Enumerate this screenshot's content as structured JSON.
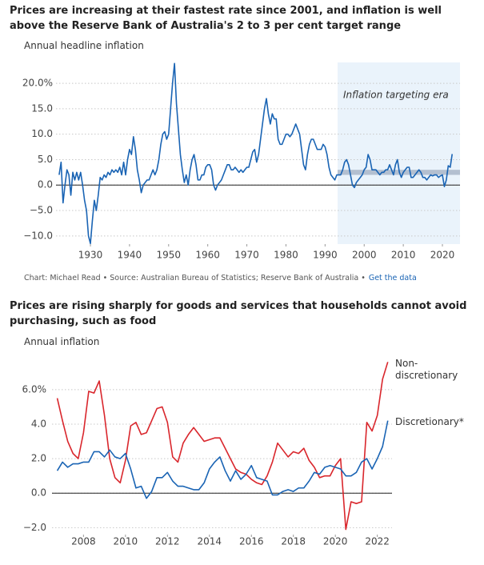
{
  "chart_data": [
    {
      "type": "line",
      "title": "Prices are increasing at their fastest rate since 2001, and inflation is well above the Reserve Bank of Australia's 2 to 3 per cent target range",
      "subtitle": "Annual headline inflation",
      "xlim": [
        1921.2,
        2024.5
      ],
      "xticks": [
        1930,
        1940,
        1950,
        1960,
        1970,
        1980,
        1990,
        2000,
        2010,
        2020
      ],
      "ylim": [
        -11.6,
        24.1
      ],
      "yticks": [
        {
          "value": 20,
          "label": "20.0%"
        },
        {
          "value": 15,
          "label": "15.0"
        },
        {
          "value": 10,
          "label": "10.0"
        },
        {
          "value": 5,
          "label": "5.0"
        },
        {
          "value": 0,
          "label": "0.0"
        },
        {
          "value": -5,
          "label": "−5.0"
        },
        {
          "value": -10,
          "label": "−10.0"
        }
      ],
      "grid": true,
      "shade": {
        "x": [
          1993.2,
          2024.5
        ],
        "color": "#eaf3fb"
      },
      "annotation": "Inflation targeting era",
      "target_band": [
        2,
        3
      ],
      "target_color": "#b3bfd0",
      "color": "#1a64b4",
      "x": [
        1922,
        1922.5,
        1923,
        1923.5,
        1924,
        1924.5,
        1925,
        1925.5,
        1926,
        1926.5,
        1927,
        1927.5,
        1928,
        1928.5,
        1929,
        1929.5,
        1930,
        1930.5,
        1931,
        1931.5,
        1932,
        1932.5,
        1933,
        1933.5,
        1934,
        1934.5,
        1935,
        1935.5,
        1936,
        1936.5,
        1937,
        1937.5,
        1938,
        1938.5,
        1939,
        1939.5,
        1940,
        1940.5,
        1941,
        1941.5,
        1942,
        1942.5,
        1943,
        1943.5,
        1944,
        1944.5,
        1945,
        1945.5,
        1946,
        1946.5,
        1947,
        1947.5,
        1948,
        1948.5,
        1949,
        1949.5,
        1950,
        1950.5,
        1951,
        1951.5,
        1952,
        1952.5,
        1953,
        1953.5,
        1954,
        1954.5,
        1955,
        1955.5,
        1956,
        1956.5,
        1957,
        1957.5,
        1958,
        1958.5,
        1959,
        1959.5,
        1960,
        1960.5,
        1961,
        1961.5,
        1962,
        1962.5,
        1963,
        1963.5,
        1964,
        1964.5,
        1965,
        1965.5,
        1966,
        1966.5,
        1967,
        1967.5,
        1968,
        1968.5,
        1969,
        1969.5,
        1970,
        1970.5,
        1971,
        1971.5,
        1972,
        1972.5,
        1973,
        1973.5,
        1974,
        1974.5,
        1975,
        1975.5,
        1976,
        1976.5,
        1977,
        1977.5,
        1978,
        1978.5,
        1979,
        1979.5,
        1980,
        1980.5,
        1981,
        1981.5,
        1982,
        1982.5,
        1983,
        1983.5,
        1984,
        1984.5,
        1985,
        1985.5,
        1986,
        1986.5,
        1987,
        1987.5,
        1988,
        1988.5,
        1989,
        1989.5,
        1990,
        1990.5,
        1991,
        1991.5,
        1992,
        1992.5,
        1993,
        1993.5,
        1994,
        1994.5,
        1995,
        1995.5,
        1996,
        1996.5,
        1997,
        1997.5,
        1998,
        1998.5,
        1999,
        1999.5,
        2000,
        2000.5,
        2001,
        2001.5,
        2002,
        2002.5,
        2003,
        2003.5,
        2004,
        2004.5,
        2005,
        2005.5,
        2006,
        2006.5,
        2007,
        2007.5,
        2008,
        2008.5,
        2009,
        2009.5,
        2010,
        2010.5,
        2011,
        2011.5,
        2012,
        2012.5,
        2013,
        2013.5,
        2014,
        2014.5,
        2015,
        2015.5,
        2016,
        2016.5,
        2017,
        2017.5,
        2018,
        2018.5,
        2019,
        2019.5,
        2020,
        2020.5,
        2021,
        2021.5,
        2022,
        2022.5
      ],
      "values": [
        2,
        4.5,
        -3.5,
        0,
        3,
        2,
        -2,
        2.5,
        1,
        2.5,
        1,
        2.5,
        0,
        -3,
        -5,
        -10,
        -11.5,
        -7,
        -3,
        -5,
        -2,
        1.5,
        1,
        2,
        1.5,
        2.5,
        2,
        3,
        2.5,
        3,
        2.5,
        3.5,
        2,
        4.5,
        2,
        5,
        7,
        6,
        9.5,
        7,
        3,
        1,
        -1.5,
        0,
        0.5,
        1,
        1,
        2,
        3,
        2,
        3,
        5,
        8,
        10,
        10.5,
        9,
        10,
        15,
        20,
        23.9,
        16,
        11,
        6,
        3,
        0.5,
        2,
        0,
        3,
        5,
        6,
        4,
        1,
        1,
        2,
        2,
        3.5,
        4,
        4,
        3,
        0,
        -1,
        0,
        0.5,
        1,
        2,
        3,
        4,
        4,
        3,
        3,
        3.5,
        3,
        2.5,
        3,
        2.5,
        3,
        3.5,
        3.5,
        5,
        6.5,
        7,
        4.5,
        6,
        9,
        12,
        15,
        17,
        14,
        12,
        14,
        13,
        13,
        9,
        8,
        8,
        9,
        10,
        10,
        9.5,
        10,
        11,
        12,
        11,
        10,
        7,
        4,
        3,
        6,
        8,
        9,
        9,
        8,
        7,
        7,
        7,
        8,
        7.5,
        6,
        3.5,
        2,
        1.5,
        1,
        2,
        2,
        2,
        3,
        4.5,
        5,
        4,
        2,
        0,
        -0.5,
        0.5,
        1,
        1.5,
        2,
        3,
        3.5,
        6,
        5,
        3,
        3,
        3,
        2.5,
        2,
        2.5,
        2.5,
        3,
        3,
        4,
        3,
        2,
        4,
        5,
        2.5,
        1.5,
        2.5,
        3,
        3.5,
        3.5,
        1.5,
        1.5,
        2,
        2.5,
        3,
        2.5,
        1.5,
        1.5,
        1,
        1.5,
        2,
        1.8,
        2,
        2,
        1.5,
        1.8,
        2,
        -0.3,
        1,
        3.8,
        3.5,
        6.1
      ]
    },
    {
      "type": "line",
      "title": "Prices are rising sharply for goods and services that households cannot avoid purchasing, such as food",
      "subtitle": "Annual inflation",
      "xlim": [
        2006.5,
        2022.7
      ],
      "xticks": [
        2008,
        2010,
        2012,
        2014,
        2016,
        2018,
        2020,
        2022
      ],
      "ylim": [
        -2.4,
        7.8
      ],
      "yticks": [
        {
          "value": 6,
          "label": "6.0%"
        },
        {
          "value": 4,
          "label": "4.0"
        },
        {
          "value": 2,
          "label": "2.0"
        },
        {
          "value": 0,
          "label": "0.0"
        },
        {
          "value": -2,
          "label": "−2.0"
        }
      ],
      "grid": true,
      "x": [
        2006.75,
        2007,
        2007.25,
        2007.5,
        2007.75,
        2008,
        2008.25,
        2008.5,
        2008.75,
        2009,
        2009.25,
        2009.5,
        2009.75,
        2010,
        2010.25,
        2010.5,
        2010.75,
        2011,
        2011.25,
        2011.5,
        2011.75,
        2012,
        2012.25,
        2012.5,
        2012.75,
        2013,
        2013.25,
        2013.5,
        2013.75,
        2014,
        2014.25,
        2014.5,
        2014.75,
        2015,
        2015.25,
        2015.5,
        2015.75,
        2016,
        2016.25,
        2016.5,
        2016.75,
        2017,
        2017.25,
        2017.5,
        2017.75,
        2018,
        2018.25,
        2018.5,
        2018.75,
        2019,
        2019.25,
        2019.5,
        2019.75,
        2020,
        2020.25,
        2020.5,
        2020.75,
        2021,
        2021.25,
        2021.5,
        2021.75,
        2022,
        2022.25,
        2022.5
      ],
      "series": [
        {
          "name": "Non-discretionary",
          "color": "#d9262c",
          "values": [
            5.5,
            4.2,
            3.0,
            2.3,
            2.0,
            3.5,
            5.9,
            5.8,
            6.5,
            4.5,
            2.0,
            0.9,
            0.6,
            1.9,
            3.9,
            4.1,
            3.4,
            3.5,
            4.2,
            4.9,
            5.0,
            4.1,
            2.1,
            1.8,
            2.9,
            3.4,
            3.8,
            3.4,
            3.0,
            3.1,
            3.2,
            3.2,
            2.6,
            2.0,
            1.4,
            1.2,
            1.1,
            0.8,
            0.6,
            0.5,
            1.0,
            1.8,
            2.9,
            2.5,
            2.1,
            2.4,
            2.3,
            2.6,
            1.9,
            1.5,
            0.9,
            1.0,
            1.0,
            1.6,
            2.0,
            -2.1,
            -0.5,
            -0.6,
            -0.5,
            4.1,
            3.6,
            4.5,
            6.6,
            7.6
          ]
        },
        {
          "name": "Discretionary*",
          "color": "#1a64b4",
          "values": [
            1.3,
            1.8,
            1.5,
            1.7,
            1.7,
            1.8,
            1.8,
            2.4,
            2.4,
            2.1,
            2.5,
            2.1,
            2.0,
            2.3,
            1.4,
            0.3,
            0.4,
            -0.3,
            0.1,
            0.9,
            0.9,
            1.2,
            0.7,
            0.4,
            0.4,
            0.3,
            0.2,
            0.2,
            0.6,
            1.4,
            1.8,
            2.1,
            1.3,
            0.7,
            1.3,
            0.8,
            1.1,
            1.6,
            0.9,
            0.8,
            0.7,
            -0.1,
            -0.1,
            0.1,
            0.2,
            0.1,
            0.3,
            0.3,
            0.7,
            1.2,
            1.1,
            1.5,
            1.6,
            1.5,
            1.4,
            1.0,
            1.0,
            1.2,
            1.8,
            2.0,
            1.4,
            2.0,
            2.7,
            4.2
          ]
        }
      ]
    }
  ],
  "footer": {
    "text": "Chart: Michael Read • Source: Australian Bureau of Statistics; Reserve Bank of Australia •",
    "link": "Get the data"
  }
}
